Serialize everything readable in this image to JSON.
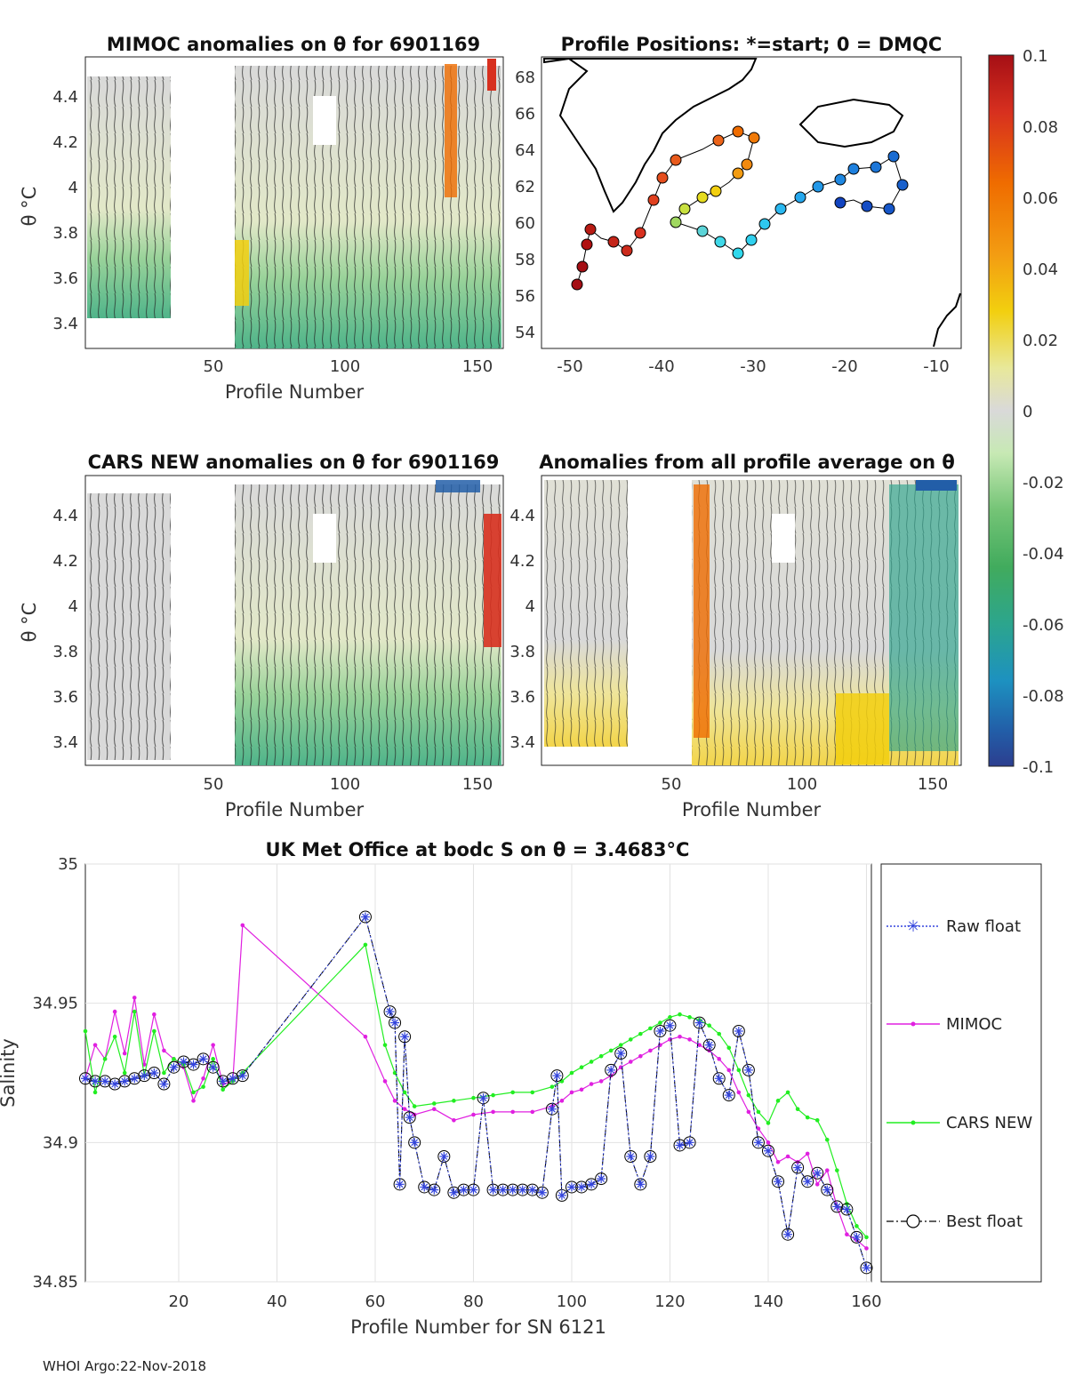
{
  "footer": "WHOI Argo:22-Nov-2018",
  "colorbar": {
    "ticks": [
      "0.1",
      "0.08",
      "0.06",
      "0.04",
      "0.02",
      "0",
      "-0.02",
      "-0.04",
      "-0.06",
      "-0.08",
      "-0.1"
    ],
    "colors": [
      "#a50f15",
      "#d7301f",
      "#ef6c00",
      "#f39c12",
      "#f2cf0f",
      "#e8e89a",
      "#d9d9d9",
      "#c7e9b4",
      "#74c476",
      "#41ab5d",
      "#2ca58d",
      "#1d91c0",
      "#225ea8",
      "#2c3e8f"
    ]
  },
  "panels": {
    "mimoc": {
      "title": "MIMOC anomalies on θ  for 6901169",
      "ylabel": "θ °C",
      "xlabel": "Profile Number",
      "yticks": [
        "4.4",
        "4.2",
        "4",
        "3.8",
        "3.6",
        "3.4"
      ],
      "xticks": [
        "50",
        "100",
        "150"
      ]
    },
    "map": {
      "title": "Profile Positions: *=start; 0 = DMQC",
      "yticks": [
        "68",
        "66",
        "64",
        "62",
        "60",
        "58",
        "56",
        "54"
      ],
      "xticks": [
        "-50",
        "-40",
        "-30",
        "-20",
        "-10"
      ]
    },
    "cars": {
      "title": "CARS NEW anomalies on θ for 6901169",
      "ylabel": "θ °C",
      "xlabel": "Profile Number",
      "yticks": [
        "4.4",
        "4.2",
        "4",
        "3.8",
        "3.6",
        "3.4"
      ],
      "xticks": [
        "50",
        "100",
        "150"
      ]
    },
    "avg": {
      "title": "Anomalies from all profile average on θ",
      "xlabel": "Profile Number",
      "yticks": [
        "4.4",
        "4.2",
        "4",
        "3.8",
        "3.6",
        "3.4"
      ],
      "xticks": [
        "50",
        "100",
        "150"
      ]
    }
  },
  "chart_data": {
    "type": "line",
    "title": "UK Met Office at bodc S on θ = 3.4683°C",
    "xlabel": "Profile Number for SN 6121",
    "ylabel": "Salinity",
    "xlim": [
      1,
      161
    ],
    "ylim": [
      34.85,
      35.0
    ],
    "xticks": [
      20,
      40,
      60,
      80,
      100,
      120,
      140,
      160
    ],
    "yticks": [
      34.85,
      34.9,
      34.95,
      35
    ],
    "ytick_labels": [
      "34.85",
      "34.9",
      "34.95",
      "35"
    ],
    "legend": [
      "Raw float",
      "MIMOC",
      "CARS NEW",
      "Best float"
    ],
    "series": [
      {
        "name": "MIMOC",
        "color": "#e020e0",
        "x": [
          1,
          3,
          5,
          7,
          9,
          11,
          13,
          15,
          17,
          19,
          21,
          23,
          25,
          27,
          29,
          31,
          33,
          58,
          62,
          64,
          66,
          68,
          72,
          76,
          80,
          84,
          88,
          92,
          96,
          98,
          100,
          102,
          104,
          106,
          108,
          110,
          112,
          114,
          116,
          118,
          120,
          122,
          124,
          126,
          128,
          130,
          132,
          134,
          136,
          138,
          140,
          142,
          144,
          146,
          148,
          150,
          152,
          154,
          156,
          158,
          160
        ],
        "y": [
          34.923,
          34.935,
          34.93,
          34.947,
          34.932,
          34.952,
          34.928,
          34.946,
          34.933,
          34.93,
          34.927,
          34.915,
          34.923,
          34.935,
          34.921,
          34.922,
          34.978,
          34.938,
          34.922,
          34.915,
          34.912,
          34.91,
          34.912,
          34.908,
          34.91,
          34.911,
          34.911,
          34.911,
          34.913,
          34.915,
          34.918,
          34.919,
          34.921,
          34.922,
          34.924,
          34.927,
          34.929,
          34.931,
          34.933,
          34.935,
          34.937,
          34.938,
          34.937,
          34.935,
          34.933,
          34.93,
          34.926,
          34.918,
          34.911,
          34.905,
          34.9,
          34.893,
          34.895,
          34.893,
          34.896,
          34.885,
          34.89,
          34.877,
          34.867,
          34.865,
          34.862
        ]
      },
      {
        "name": "CARS NEW",
        "color": "#22ee22",
        "x": [
          1,
          3,
          5,
          7,
          9,
          11,
          13,
          15,
          17,
          19,
          21,
          23,
          25,
          27,
          29,
          31,
          33,
          58,
          62,
          64,
          66,
          68,
          72,
          76,
          80,
          84,
          88,
          92,
          96,
          98,
          100,
          102,
          104,
          106,
          108,
          110,
          112,
          114,
          116,
          118,
          120,
          122,
          124,
          126,
          128,
          130,
          132,
          134,
          136,
          138,
          140,
          142,
          144,
          146,
          148,
          150,
          152,
          154,
          156,
          158,
          160
        ],
        "y": [
          34.94,
          34.918,
          34.93,
          34.938,
          34.925,
          34.947,
          34.924,
          34.94,
          34.925,
          34.93,
          34.928,
          34.918,
          34.92,
          34.93,
          34.919,
          34.922,
          34.925,
          34.971,
          34.935,
          34.925,
          34.918,
          34.913,
          34.914,
          34.915,
          34.916,
          34.917,
          34.918,
          34.918,
          34.92,
          34.922,
          34.925,
          34.927,
          34.929,
          34.931,
          34.933,
          34.935,
          34.937,
          34.939,
          34.941,
          34.943,
          34.945,
          34.946,
          34.945,
          34.944,
          34.942,
          34.939,
          34.934,
          34.926,
          34.917,
          34.911,
          34.907,
          34.915,
          34.918,
          34.912,
          34.909,
          34.908,
          34.901,
          34.89,
          34.878,
          34.87,
          34.866
        ]
      },
      {
        "name": "Best float",
        "color": "#000000",
        "x": [
          1,
          3,
          5,
          7,
          9,
          11,
          13,
          15,
          17,
          19,
          21,
          23,
          25,
          27,
          29,
          31,
          33,
          58,
          63,
          64,
          65,
          66,
          67,
          68,
          70,
          72,
          74,
          76,
          78,
          80,
          82,
          84,
          86,
          88,
          90,
          92,
          94,
          96,
          97,
          98,
          100,
          102,
          104,
          106,
          108,
          110,
          112,
          114,
          116,
          118,
          120,
          122,
          124,
          126,
          128,
          130,
          132,
          134,
          136,
          138,
          140,
          142,
          144,
          146,
          148,
          150,
          152,
          154,
          156,
          158,
          160
        ],
        "y": [
          34.923,
          34.922,
          34.922,
          34.921,
          34.922,
          34.923,
          34.924,
          34.925,
          34.921,
          34.927,
          34.929,
          34.928,
          34.93,
          34.927,
          34.922,
          34.923,
          34.924,
          34.981,
          34.947,
          34.943,
          34.885,
          34.938,
          34.909,
          34.9,
          34.884,
          34.883,
          34.895,
          34.882,
          34.883,
          34.883,
          34.916,
          34.883,
          34.883,
          34.883,
          34.883,
          34.883,
          34.882,
          34.912,
          34.924,
          34.881,
          34.884,
          34.884,
          34.885,
          34.887,
          34.926,
          34.932,
          34.895,
          34.885,
          34.895,
          34.94,
          34.942,
          34.899,
          34.9,
          34.943,
          34.935,
          34.923,
          34.917,
          34.94,
          34.926,
          34.9,
          34.897,
          34.886,
          34.867,
          34.891,
          34.886,
          34.889,
          34.883,
          34.877,
          34.876,
          34.866,
          34.855
        ]
      },
      {
        "name": "Raw float",
        "color": "#3344dd",
        "x": [
          1,
          3,
          5,
          7,
          9,
          11,
          13,
          15,
          17,
          19,
          21,
          23,
          25,
          27,
          29,
          31,
          33,
          58,
          63,
          64,
          65,
          66,
          67,
          68,
          70,
          72,
          74,
          76,
          78,
          80,
          82,
          84,
          86,
          88,
          90,
          92,
          94,
          96,
          97,
          98,
          100,
          102,
          104,
          106,
          108,
          110,
          112,
          114,
          116,
          118,
          120,
          122,
          124,
          126,
          128,
          130,
          132,
          134,
          136,
          138,
          140,
          142,
          144,
          146,
          148,
          150,
          152,
          154,
          156,
          158,
          160
        ],
        "y": [
          34.923,
          34.922,
          34.922,
          34.921,
          34.922,
          34.923,
          34.924,
          34.925,
          34.921,
          34.927,
          34.929,
          34.928,
          34.93,
          34.927,
          34.922,
          34.923,
          34.924,
          34.981,
          34.947,
          34.943,
          34.885,
          34.938,
          34.909,
          34.9,
          34.884,
          34.883,
          34.895,
          34.882,
          34.883,
          34.883,
          34.916,
          34.883,
          34.883,
          34.883,
          34.883,
          34.883,
          34.882,
          34.912,
          34.924,
          34.881,
          34.884,
          34.884,
          34.885,
          34.887,
          34.926,
          34.932,
          34.895,
          34.885,
          34.895,
          34.94,
          34.942,
          34.899,
          34.9,
          34.943,
          34.935,
          34.923,
          34.917,
          34.94,
          34.926,
          34.9,
          34.897,
          34.886,
          34.867,
          34.891,
          34.886,
          34.889,
          34.883,
          34.877,
          34.876,
          34.866,
          34.855
        ]
      }
    ]
  }
}
